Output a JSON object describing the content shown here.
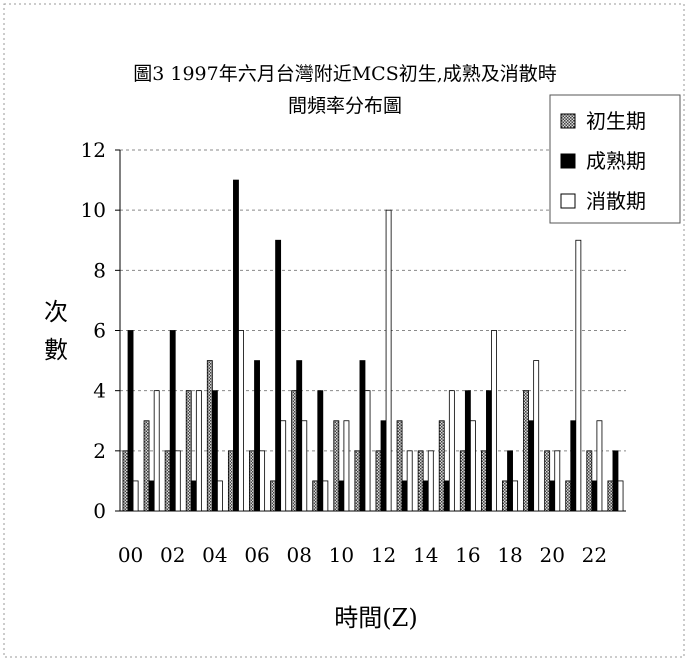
{
  "chart_data": {
    "type": "bar",
    "title": "圖3 1997年六月台灣附近MCS初生,成熟及消散時間頻率分布圖",
    "title_lines": [
      "圖3 1997年六月台灣附近MCS初生,成熟及消散時",
      "間頻率分布圖"
    ],
    "xlabel": "時間(Z)",
    "ylabel": "次數",
    "ylabel_chars": [
      "次",
      "數"
    ],
    "ylim": [
      0,
      12
    ],
    "yticks": [
      "0",
      "2",
      "4",
      "6",
      "8",
      "10",
      "12"
    ],
    "categories": [
      "00",
      "01",
      "02",
      "03",
      "04",
      "05",
      "06",
      "07",
      "08",
      "09",
      "10",
      "11",
      "12",
      "13",
      "14",
      "15",
      "16",
      "17",
      "18",
      "19",
      "20",
      "21",
      "22",
      "23"
    ],
    "xtick_labels": [
      "00",
      "02",
      "04",
      "06",
      "08",
      "10",
      "12",
      "14",
      "16",
      "18",
      "20",
      "22"
    ],
    "grid": true,
    "legend_position": "top-right",
    "series": [
      {
        "name": "初生期",
        "color": "#888888",
        "pattern": "hatched",
        "values": [
          2,
          3,
          2,
          4,
          5,
          2,
          2,
          1,
          4,
          1,
          3,
          2,
          2,
          3,
          2,
          3,
          2,
          2,
          1,
          4,
          2,
          1,
          2,
          1
        ]
      },
      {
        "name": "成熟期",
        "color": "#000000",
        "pattern": "solid",
        "values": [
          6,
          1,
          6,
          1,
          4,
          11,
          5,
          9,
          5,
          4,
          1,
          5,
          3,
          1,
          1,
          1,
          4,
          4,
          2,
          3,
          1,
          3,
          1,
          2
        ]
      },
      {
        "name": "消散期",
        "color": "#ffffff",
        "pattern": "outline",
        "values": [
          1,
          4,
          2,
          4,
          1,
          6,
          2,
          3,
          3,
          1,
          3,
          4,
          10,
          2,
          2,
          4,
          3,
          6,
          1,
          5,
          2,
          9,
          3,
          1
        ]
      }
    ]
  }
}
